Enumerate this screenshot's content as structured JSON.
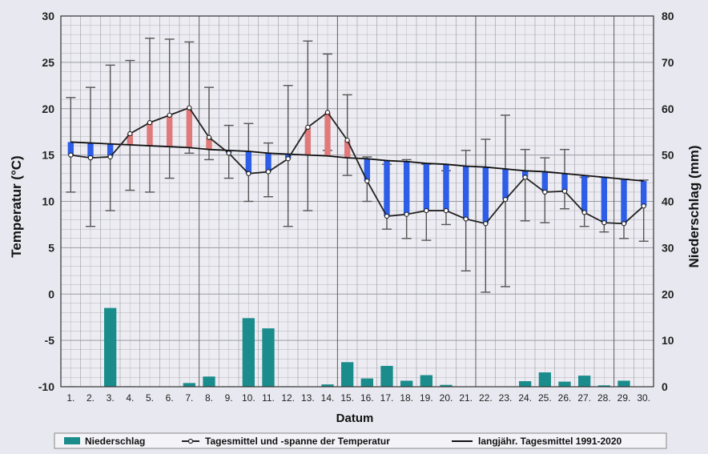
{
  "chart_data": {
    "type": "bar+line",
    "xlabel": "Datum",
    "ylabel_left": "Temperatur (°C)",
    "ylabel_right": "Niederschlag (mm)",
    "ylim_left": [
      -10,
      30
    ],
    "ylim_right": [
      0,
      80
    ],
    "yticks_left": [
      -10,
      -5,
      0,
      5,
      10,
      15,
      20,
      25,
      30
    ],
    "yticks_right": [
      0,
      10,
      20,
      30,
      40,
      50,
      60,
      70,
      80
    ],
    "categories": [
      "1.",
      "2.",
      "3.",
      "4.",
      "5.",
      "6.",
      "7.",
      "8.",
      "9.",
      "10.",
      "11.",
      "12.",
      "13.",
      "14.",
      "15.",
      "16.",
      "17.",
      "18.",
      "19.",
      "20.",
      "21.",
      "22.",
      "23.",
      "24.",
      "25.",
      "26.",
      "27.",
      "28.",
      "29.",
      "30."
    ],
    "grid": true,
    "legend_position": "bottom",
    "series": [
      {
        "name": "Niederschlag",
        "type": "bar",
        "axis": "right",
        "color": "#1a8c8c",
        "values": [
          0.1,
          0,
          17,
          0.1,
          0,
          0,
          0.8,
          2.2,
          0.1,
          14.8,
          12.6,
          0.1,
          0,
          0.5,
          5.3,
          1.8,
          4.5,
          1.3,
          2.5,
          0.4,
          0,
          0,
          0,
          1.2,
          3.1,
          1.1,
          2.4,
          0.3,
          1.3,
          0
        ]
      },
      {
        "name": "Tagesmittel und -spanne der Temperatur",
        "type": "line",
        "axis": "left",
        "color": "#222222",
        "mean": [
          15.0,
          14.7,
          14.8,
          17.3,
          18.5,
          19.3,
          20.1,
          16.9,
          15.2,
          13.0,
          13.2,
          14.6,
          18.0,
          19.6,
          16.6,
          12.2,
          8.4,
          8.6,
          9.0,
          9.0,
          8.1,
          7.6,
          10.2,
          12.6,
          11.0,
          11.1,
          8.8,
          7.7,
          7.6,
          9.5
        ],
        "min": [
          11.0,
          7.3,
          9.0,
          11.2,
          11.0,
          12.5,
          15.2,
          14.5,
          12.5,
          10.0,
          10.5,
          7.3,
          9.0,
          15.5,
          12.8,
          10.0,
          7.0,
          6.0,
          5.8,
          7.5,
          2.5,
          0.2,
          0.8,
          7.9,
          7.7,
          9.2,
          7.3,
          6.7,
          6.0,
          5.7
        ],
        "max": [
          21.2,
          22.3,
          24.7,
          25.2,
          27.6,
          27.5,
          27.2,
          22.3,
          18.2,
          18.4,
          16.3,
          22.5,
          27.3,
          25.9,
          21.5,
          14.8,
          14.0,
          14.5,
          14.0,
          13.3,
          15.5,
          16.7,
          19.3,
          15.6,
          14.7,
          15.6,
          12.6,
          12.6,
          12.4,
          12.3
        ]
      },
      {
        "name": "langjähr. Tagesmittel 1991-2020",
        "type": "line",
        "axis": "left",
        "color": "#111111",
        "values": [
          16.4,
          16.3,
          16.2,
          16.1,
          16.0,
          15.9,
          15.8,
          15.6,
          15.5,
          15.4,
          15.2,
          15.1,
          15.0,
          14.9,
          14.7,
          14.6,
          14.4,
          14.3,
          14.1,
          14.0,
          13.8,
          13.7,
          13.5,
          13.3,
          13.2,
          13.0,
          12.8,
          12.6,
          12.4,
          12.2
        ]
      }
    ],
    "colors": {
      "above_normal": "#e07a7a",
      "below_normal": "#2e5ee8",
      "background": "#e8e8f0",
      "grid": "#9a9aa4"
    }
  }
}
